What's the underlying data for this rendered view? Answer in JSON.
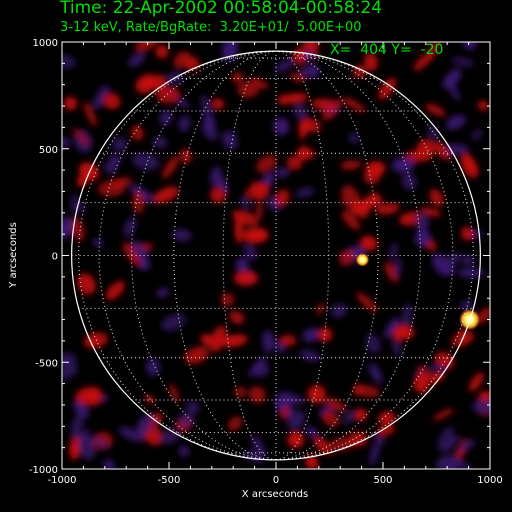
{
  "header": {
    "title": "Time: 22-Apr-2002 00:58:04-00:58:24",
    "subtitle": "3-12 keV, Rate/BgRate:  3.20E+01/  5.00E+00",
    "cursor_readout": "X=  404 Y=  -20"
  },
  "colors": {
    "text": "#00e000",
    "axes": "#ffffff",
    "grid": "#ffffff",
    "emission_red": "#c81010",
    "emission_purple": "#3a1870",
    "hot_core": "#ffff80"
  },
  "chart_data": {
    "type": "heatmap",
    "title": "Time: 22-Apr-2002 00:58:04-00:58:24",
    "subtitle": "3-12 keV, Rate/BgRate:  3.20E+01/  5.00E+00",
    "xlabel": "X arcseconds",
    "ylabel": "Y arcseconds",
    "xlim": [
      -1000,
      1000
    ],
    "ylim": [
      -1000,
      1000
    ],
    "x_ticks": [
      -1000,
      -500,
      0,
      500,
      1000
    ],
    "y_ticks": [
      -1000,
      -500,
      0,
      500,
      1000
    ],
    "x_tick_labels": [
      "-1000",
      "-500",
      "0",
      "500",
      "1000"
    ],
    "y_tick_labels": [
      "-1000",
      "-500",
      "0",
      "500",
      "1000"
    ],
    "solar_radius_arcsec": 955,
    "heliographic_grid_deg": 15,
    "sources": [
      {
        "x": 404,
        "y": -20
      },
      {
        "x": 905,
        "y": -300
      }
    ]
  }
}
